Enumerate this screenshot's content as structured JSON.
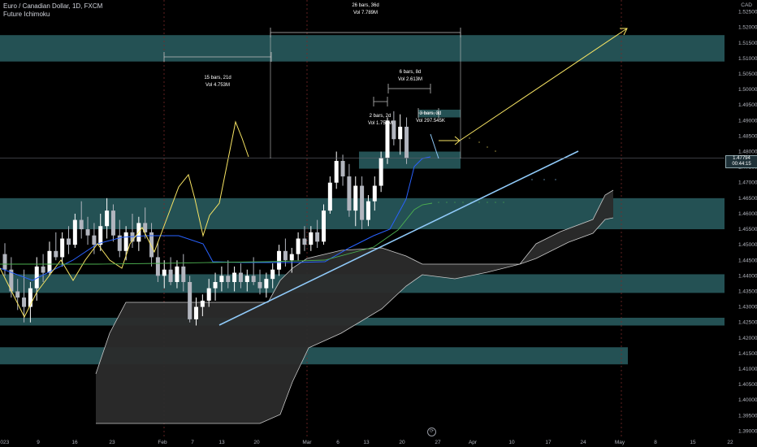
{
  "header": {
    "symbol": "Euro / Canadian Dollar, 1D, FXCM",
    "indicator": "Future Ichimoku",
    "currency": "CAD"
  },
  "price_tag": {
    "line1": "1.47794",
    "line2": "00:44:15"
  },
  "colors": {
    "up": "#ffffff",
    "down": "#b2b5be",
    "zone": "#2a5f63",
    "kijun": "#2962ff",
    "tenkan": "#f7e463",
    "trend": "#90caf9",
    "cloud_edge": "#c9c9c9",
    "green": "#4caf50",
    "arrow": "#f7e463"
  },
  "chart_data": {
    "type": "candlestick",
    "title": "Euro / Canadian Dollar, 1D, FXCM",
    "ylabel": "CAD",
    "ylim": [
      1.3875,
      1.5275
    ],
    "y_ticks": [
      "1.52500",
      "1.52000",
      "1.51500",
      "1.51000",
      "1.50500",
      "1.50000",
      "1.49500",
      "1.49000",
      "1.48500",
      "1.48000",
      "1.47500",
      "1.47000",
      "1.46500",
      "1.46000",
      "1.45500",
      "1.45000",
      "1.44500",
      "1.44000",
      "1.43500",
      "1.43000",
      "1.42500",
      "1.42000",
      "1.41500",
      "1.41000",
      "1.40500",
      "1.40000",
      "1.39500",
      "1.39000"
    ],
    "x_ticks": [
      "2023",
      "9",
      "16",
      "23",
      "Feb",
      "7",
      "13",
      "20",
      "Mar",
      "6",
      "13",
      "20",
      "27",
      "Apr",
      "10",
      "17",
      "24",
      "May",
      "8",
      "15",
      "22"
    ],
    "candles": [
      {
        "o": 1.447,
        "h": 1.4505,
        "l": 1.44,
        "c": 1.442
      },
      {
        "o": 1.442,
        "h": 1.446,
        "l": 1.433,
        "c": 1.435
      },
      {
        "o": 1.435,
        "h": 1.439,
        "l": 1.429,
        "c": 1.433
      },
      {
        "o": 1.433,
        "h": 1.442,
        "l": 1.425,
        "c": 1.43
      },
      {
        "o": 1.43,
        "h": 1.438,
        "l": 1.425,
        "c": 1.436
      },
      {
        "o": 1.436,
        "h": 1.446,
        "l": 1.432,
        "c": 1.443
      },
      {
        "o": 1.443,
        "h": 1.447,
        "l": 1.438,
        "c": 1.441
      },
      {
        "o": 1.441,
        "h": 1.451,
        "l": 1.44,
        "c": 1.448
      },
      {
        "o": 1.448,
        "h": 1.454,
        "l": 1.445,
        "c": 1.446
      },
      {
        "o": 1.446,
        "h": 1.454,
        "l": 1.443,
        "c": 1.452
      },
      {
        "o": 1.452,
        "h": 1.456,
        "l": 1.447,
        "c": 1.45
      },
      {
        "o": 1.45,
        "h": 1.46,
        "l": 1.449,
        "c": 1.458
      },
      {
        "o": 1.458,
        "h": 1.464,
        "l": 1.452,
        "c": 1.455
      },
      {
        "o": 1.455,
        "h": 1.459,
        "l": 1.45,
        "c": 1.453
      },
      {
        "o": 1.453,
        "h": 1.457,
        "l": 1.447,
        "c": 1.45
      },
      {
        "o": 1.45,
        "h": 1.46,
        "l": 1.448,
        "c": 1.456
      },
      {
        "o": 1.456,
        "h": 1.465,
        "l": 1.452,
        "c": 1.461
      },
      {
        "o": 1.461,
        "h": 1.463,
        "l": 1.451,
        "c": 1.453
      },
      {
        "o": 1.453,
        "h": 1.458,
        "l": 1.446,
        "c": 1.448
      },
      {
        "o": 1.448,
        "h": 1.456,
        "l": 1.445,
        "c": 1.454
      },
      {
        "o": 1.454,
        "h": 1.46,
        "l": 1.449,
        "c": 1.451
      },
      {
        "o": 1.451,
        "h": 1.459,
        "l": 1.448,
        "c": 1.457
      },
      {
        "o": 1.457,
        "h": 1.462,
        "l": 1.452,
        "c": 1.454
      },
      {
        "o": 1.454,
        "h": 1.457,
        "l": 1.443,
        "c": 1.446
      },
      {
        "o": 1.446,
        "h": 1.451,
        "l": 1.438,
        "c": 1.44
      },
      {
        "o": 1.44,
        "h": 1.445,
        "l": 1.436,
        "c": 1.442
      },
      {
        "o": 1.442,
        "h": 1.446,
        "l": 1.437,
        "c": 1.438
      },
      {
        "o": 1.438,
        "h": 1.445,
        "l": 1.436,
        "c": 1.443
      },
      {
        "o": 1.443,
        "h": 1.447,
        "l": 1.435,
        "c": 1.438
      },
      {
        "o": 1.438,
        "h": 1.44,
        "l": 1.425,
        "c": 1.426
      },
      {
        "o": 1.426,
        "h": 1.433,
        "l": 1.424,
        "c": 1.43
      },
      {
        "o": 1.43,
        "h": 1.434,
        "l": 1.427,
        "c": 1.432
      },
      {
        "o": 1.432,
        "h": 1.439,
        "l": 1.43,
        "c": 1.436
      },
      {
        "o": 1.436,
        "h": 1.441,
        "l": 1.432,
        "c": 1.438
      },
      {
        "o": 1.438,
        "h": 1.443,
        "l": 1.435,
        "c": 1.44
      },
      {
        "o": 1.44,
        "h": 1.445,
        "l": 1.436,
        "c": 1.438
      },
      {
        "o": 1.438,
        "h": 1.443,
        "l": 1.435,
        "c": 1.441
      },
      {
        "o": 1.441,
        "h": 1.444,
        "l": 1.436,
        "c": 1.438
      },
      {
        "o": 1.438,
        "h": 1.442,
        "l": 1.435,
        "c": 1.44
      },
      {
        "o": 1.44,
        "h": 1.446,
        "l": 1.437,
        "c": 1.438
      },
      {
        "o": 1.438,
        "h": 1.442,
        "l": 1.434,
        "c": 1.436
      },
      {
        "o": 1.436,
        "h": 1.441,
        "l": 1.433,
        "c": 1.439
      },
      {
        "o": 1.439,
        "h": 1.444,
        "l": 1.436,
        "c": 1.442
      },
      {
        "o": 1.442,
        "h": 1.45,
        "l": 1.44,
        "c": 1.448
      },
      {
        "o": 1.448,
        "h": 1.452,
        "l": 1.443,
        "c": 1.445
      },
      {
        "o": 1.445,
        "h": 1.449,
        "l": 1.441,
        "c": 1.447
      },
      {
        "o": 1.447,
        "h": 1.454,
        "l": 1.445,
        "c": 1.452
      },
      {
        "o": 1.452,
        "h": 1.456,
        "l": 1.448,
        "c": 1.45
      },
      {
        "o": 1.45,
        "h": 1.456,
        "l": 1.448,
        "c": 1.454
      },
      {
        "o": 1.454,
        "h": 1.458,
        "l": 1.449,
        "c": 1.451
      },
      {
        "o": 1.451,
        "h": 1.463,
        "l": 1.45,
        "c": 1.461
      },
      {
        "o": 1.461,
        "h": 1.472,
        "l": 1.46,
        "c": 1.47
      },
      {
        "o": 1.47,
        "h": 1.48,
        "l": 1.468,
        "c": 1.477
      },
      {
        "o": 1.477,
        "h": 1.479,
        "l": 1.469,
        "c": 1.472
      },
      {
        "o": 1.472,
        "h": 1.476,
        "l": 1.459,
        "c": 1.461
      },
      {
        "o": 1.461,
        "h": 1.472,
        "l": 1.456,
        "c": 1.469
      },
      {
        "o": 1.469,
        "h": 1.472,
        "l": 1.455,
        "c": 1.458
      },
      {
        "o": 1.458,
        "h": 1.466,
        "l": 1.456,
        "c": 1.464
      },
      {
        "o": 1.464,
        "h": 1.472,
        "l": 1.461,
        "c": 1.469
      },
      {
        "o": 1.469,
        "h": 1.48,
        "l": 1.467,
        "c": 1.478
      },
      {
        "o": 1.478,
        "h": 1.491,
        "l": 1.476,
        "c": 1.49
      },
      {
        "o": 1.49,
        "h": 1.493,
        "l": 1.482,
        "c": 1.484
      },
      {
        "o": 1.484,
        "h": 1.492,
        "l": 1.479,
        "c": 1.488
      },
      {
        "o": 1.488,
        "h": 1.491,
        "l": 1.476,
        "c": 1.4779
      }
    ],
    "annotations": [
      {
        "line1": "26 bars, 36d",
        "line2": "Vol 7.789M"
      },
      {
        "line1": "15 bars, 21d",
        "line2": "Vol 4.753M"
      },
      {
        "line1": "6 bars, 8d",
        "line2": "Vol 2.613M"
      },
      {
        "line1": "2 bars, 2d",
        "line2": "Vol 1.753M"
      },
      {
        "line1": "3 bars, 3d",
        "line2": "Vol 297.545K"
      }
    ]
  }
}
